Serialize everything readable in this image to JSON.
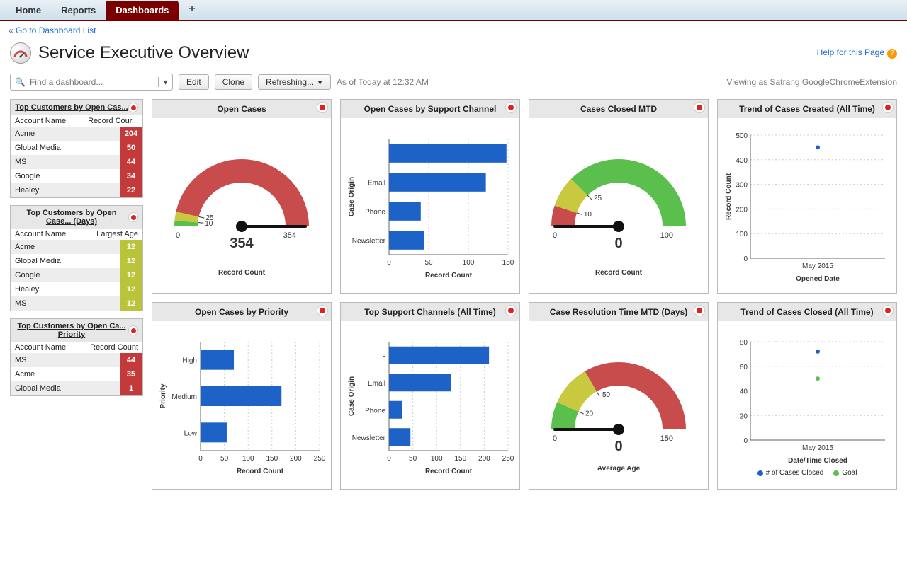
{
  "tabs": {
    "home": "Home",
    "reports": "Reports",
    "dashboards": "Dashboards"
  },
  "back_link": "« Go to Dashboard List",
  "page_title": "Service Executive Overview",
  "help_link": "Help for this Page",
  "finder_placeholder": "Find a dashboard...",
  "buttons": {
    "edit": "Edit",
    "clone": "Clone",
    "refreshing": "Refreshing..."
  },
  "asof": "As of Today at 12:32 AM",
  "viewing_as": "Viewing as Satrang GoogleChromeExtension",
  "mini1": {
    "title": "Top Customers by Open Cas...",
    "col1": "Account Name",
    "col2": "Record Cour...",
    "rows": [
      {
        "name": "Acme",
        "val": 204,
        "color": "#c43a3a"
      },
      {
        "name": "Global Media",
        "val": 50,
        "color": "#c43a3a"
      },
      {
        "name": "MS",
        "val": 44,
        "color": "#c43a3a"
      },
      {
        "name": "Google",
        "val": 34,
        "color": "#c43a3a"
      },
      {
        "name": "Healey",
        "val": 22,
        "color": "#c43a3a"
      }
    ]
  },
  "mini2": {
    "title": "Top Customers by Open Case... (Days)",
    "col1": "Account Name",
    "col2": "Largest Age",
    "rows": [
      {
        "name": "Acme",
        "val": 12,
        "color": "#b9c43a"
      },
      {
        "name": "Global Media",
        "val": 12,
        "color": "#b9c43a"
      },
      {
        "name": "Google",
        "val": 12,
        "color": "#b9c43a"
      },
      {
        "name": "Healey",
        "val": 12,
        "color": "#b9c43a"
      },
      {
        "name": "MS",
        "val": 12,
        "color": "#b9c43a"
      }
    ]
  },
  "mini3": {
    "title": "Top Customers by Open Ca... Priority",
    "col1": "Account Name",
    "col2": "Record Count",
    "rows": [
      {
        "name": "MS",
        "val": 44,
        "color": "#c43a3a"
      },
      {
        "name": "Acme",
        "val": 35,
        "color": "#c43a3a"
      },
      {
        "name": "Global Media",
        "val": 1,
        "color": "#c43a3a"
      }
    ]
  },
  "gauge_open": {
    "title": "Open Cases",
    "value": 354,
    "min": 0,
    "max": 354,
    "ticks": [
      10,
      25
    ],
    "bands": [
      {
        "from": 0,
        "to": 10,
        "color": "#5abf4d"
      },
      {
        "from": 10,
        "to": 25,
        "color": "#c9c93f"
      },
      {
        "from": 25,
        "to": 354,
        "color": "#c84c4c"
      }
    ],
    "label": "Record Count"
  },
  "gauge_closed": {
    "title": "Cases Closed MTD",
    "value": 0,
    "min": 0,
    "max": 100,
    "ticks": [
      10,
      25
    ],
    "bands": [
      {
        "from": 0,
        "to": 10,
        "color": "#c84c4c"
      },
      {
        "from": 10,
        "to": 25,
        "color": "#c9c93f"
      },
      {
        "from": 25,
        "to": 100,
        "color": "#5abf4d"
      }
    ],
    "label": "Record Count"
  },
  "gauge_res": {
    "title": "Case Resolution Time MTD (Days)",
    "value": 0,
    "min": 0,
    "max": 150,
    "ticks": [
      20,
      50
    ],
    "bands": [
      {
        "from": 0,
        "to": 20,
        "color": "#5abf4d"
      },
      {
        "from": 20,
        "to": 50,
        "color": "#c9c93f"
      },
      {
        "from": 50,
        "to": 150,
        "color": "#c84c4c"
      }
    ],
    "label": "Average Age"
  },
  "bar_channel": {
    "title": "Open Cases by Support Channel",
    "ylab": "Case Origin",
    "xlab": "Record Count",
    "xmax": 150,
    "xticks": [
      0,
      50,
      100,
      150
    ],
    "bars": [
      {
        "label": "-",
        "val": 148
      },
      {
        "label": "Email",
        "val": 122
      },
      {
        "label": "Phone",
        "val": 40
      },
      {
        "label": "Newsletter",
        "val": 44
      }
    ],
    "color": "#1d62c7"
  },
  "bar_priority": {
    "title": "Open Cases by Priority",
    "ylab": "Priority",
    "xlab": "Record Count",
    "xmax": 250,
    "xticks": [
      0,
      50,
      100,
      150,
      200,
      250
    ],
    "bars": [
      {
        "label": "High",
        "val": 70
      },
      {
        "label": "Medium",
        "val": 170
      },
      {
        "label": "Low",
        "val": 55
      }
    ],
    "color": "#1d62c7"
  },
  "bar_support_all": {
    "title": "Top Support Channels (All Time)",
    "ylab": "Case Origin",
    "xlab": "Record Count",
    "xmax": 250,
    "xticks": [
      0,
      50,
      100,
      150,
      200,
      250
    ],
    "bars": [
      {
        "label": "-",
        "val": 210
      },
      {
        "label": "Email",
        "val": 130
      },
      {
        "label": "Phone",
        "val": 28
      },
      {
        "label": "Newsletter",
        "val": 45
      }
    ],
    "color": "#1d62c7"
  },
  "trend_created": {
    "title": "Trend of Cases Created (All Time)",
    "ylab": "Record Count",
    "xlab": "Opened Date",
    "ymax": 500,
    "yticks": [
      0,
      100,
      200,
      300,
      400,
      500
    ],
    "xticklabel": "May 2015",
    "points": [
      {
        "x": 0.5,
        "y": 450,
        "color": "#1d62c7"
      }
    ]
  },
  "trend_closed": {
    "title": "Trend of Cases Closed (All Time)",
    "ylab": "",
    "xlab": "Date/Time Closed",
    "ymax": 80,
    "yticks": [
      0,
      20,
      40,
      60,
      80
    ],
    "xticklabel": "May 2015",
    "points": [
      {
        "x": 0.5,
        "y": 72,
        "color": "#1d62c7"
      },
      {
        "x": 0.5,
        "y": 50,
        "color": "#5abf4d"
      }
    ],
    "legend": [
      {
        "label": "# of Cases Closed",
        "color": "#1d62c7"
      },
      {
        "label": "Goal",
        "color": "#5abf4d"
      }
    ]
  }
}
